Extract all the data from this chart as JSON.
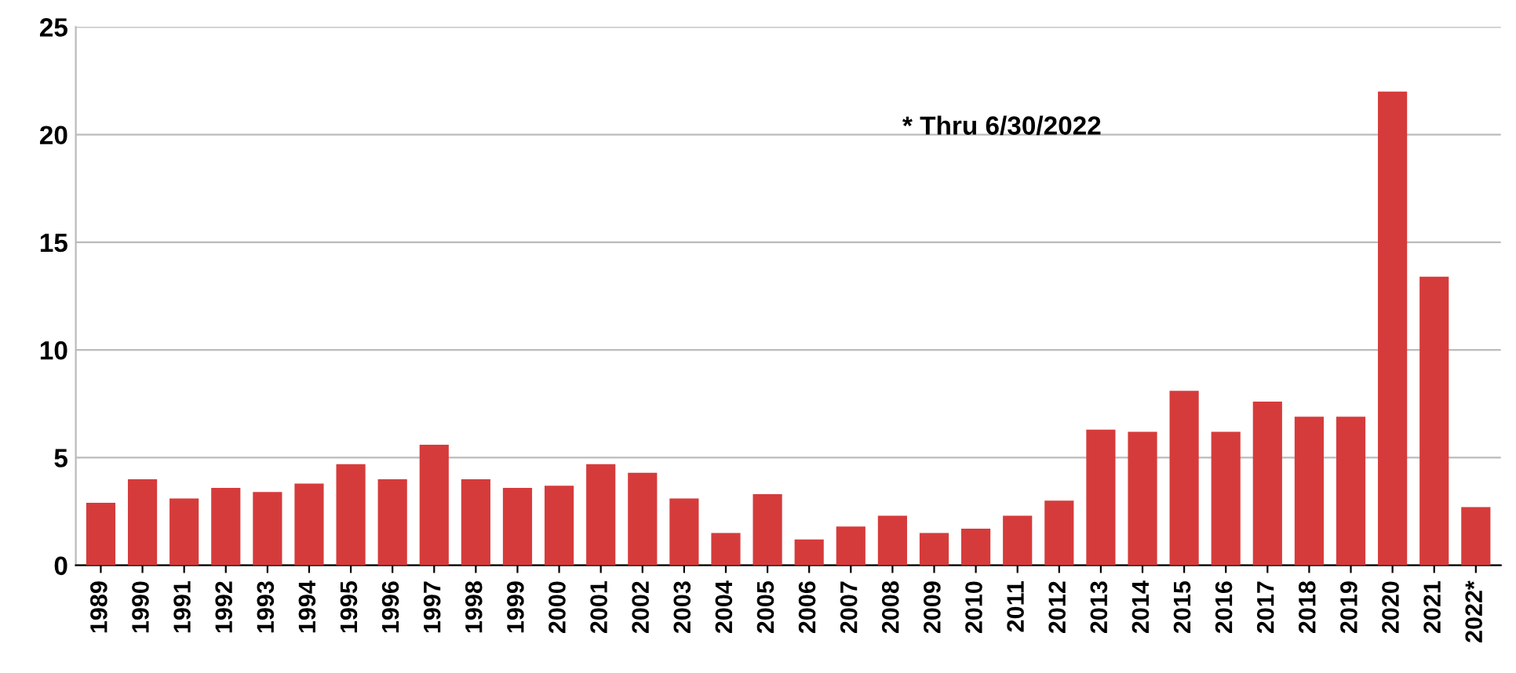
{
  "chart_data": {
    "type": "bar",
    "categories": [
      "1989",
      "1990",
      "1991",
      "1992",
      "1993",
      "1994",
      "1995",
      "1996",
      "1997",
      "1998",
      "1999",
      "2000",
      "2001",
      "2002",
      "2003",
      "2004",
      "2005",
      "2006",
      "2007",
      "2008",
      "2009",
      "2010",
      "2011",
      "2012",
      "2013",
      "2014",
      "2015",
      "2016",
      "2017",
      "2018",
      "2019",
      "2020",
      "2021",
      "2022*"
    ],
    "values": [
      2.9,
      4.0,
      3.1,
      3.6,
      3.4,
      3.8,
      4.7,
      4.0,
      5.6,
      4.0,
      3.6,
      3.7,
      4.7,
      4.3,
      3.1,
      1.5,
      3.3,
      1.2,
      1.8,
      2.3,
      1.5,
      1.7,
      2.3,
      3.0,
      6.3,
      6.2,
      8.1,
      6.2,
      7.6,
      6.9,
      6.9,
      22.0,
      13.4,
      2.7
    ],
    "color": "#d63b3b",
    "ylim": [
      0,
      25
    ],
    "yticks": [
      0,
      5,
      10,
      15,
      20,
      25
    ],
    "grid": "y",
    "annotations": [
      "* Thru 6/30/2022"
    ]
  }
}
